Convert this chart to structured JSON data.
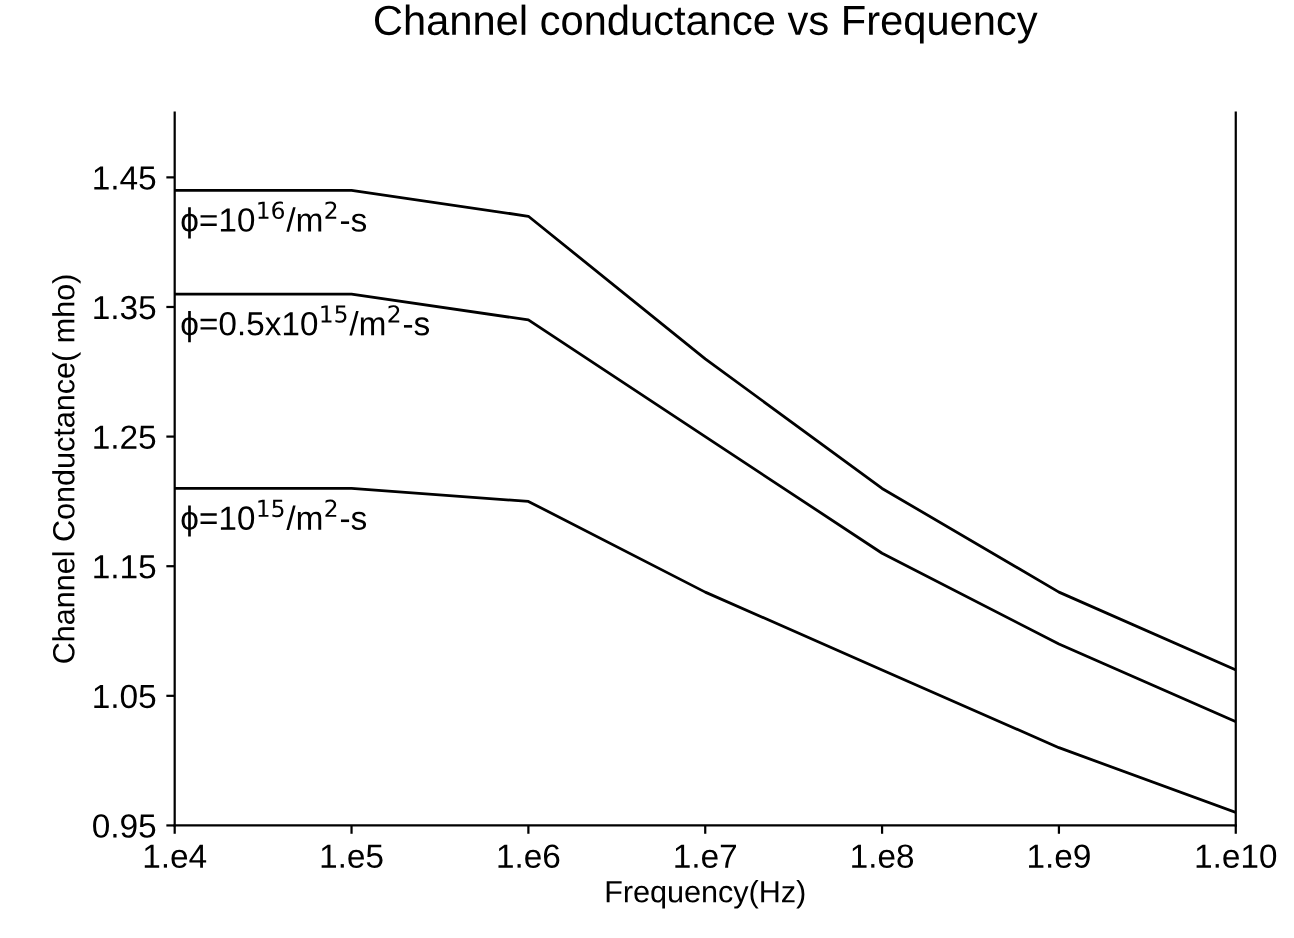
{
  "chart_data": {
    "type": "line",
    "title": "Channel conductance vs Frequency",
    "xlabel": "Frequency(Hz)",
    "ylabel": "Channel Conductance( mho)",
    "categories": [
      "1.e4",
      "1.e5",
      "1.e6",
      "1.e7",
      "1.e8",
      "1.e9",
      "1.e10"
    ],
    "series": [
      {
        "color": "#000000",
        "values": [
          1.44,
          1.44,
          1.42,
          1.31,
          1.21,
          1.13,
          1.07
        ]
      },
      {
        "color": "#000000",
        "values": [
          1.36,
          1.36,
          1.34,
          1.25,
          1.16,
          1.09,
          1.03
        ]
      },
      {
        "color": "#000000",
        "values": [
          1.21,
          1.21,
          1.2,
          1.13,
          1.07,
          1.01,
          0.96
        ]
      }
    ],
    "annotations": [
      {
        "text": "ϕ=10$^{16}$/m$^{2}$-s",
        "x": "1.e4",
        "y": 1.44
      },
      {
        "text": "ϕ=0.5x10$^{15}$/m$^{2}$-s",
        "x": "1.e4",
        "y": 1.36
      },
      {
        "text": "ϕ=10$^{15}$/m$^{2}$-s",
        "x": "1.e4",
        "y": 1.21
      }
    ],
    "ylim": [
      0.95,
      1.5
    ],
    "yticks": [
      0.95,
      1.05,
      1.15,
      1.25,
      1.35,
      1.45
    ],
    "grid": false,
    "marker": "none",
    "line_style": "solid"
  }
}
